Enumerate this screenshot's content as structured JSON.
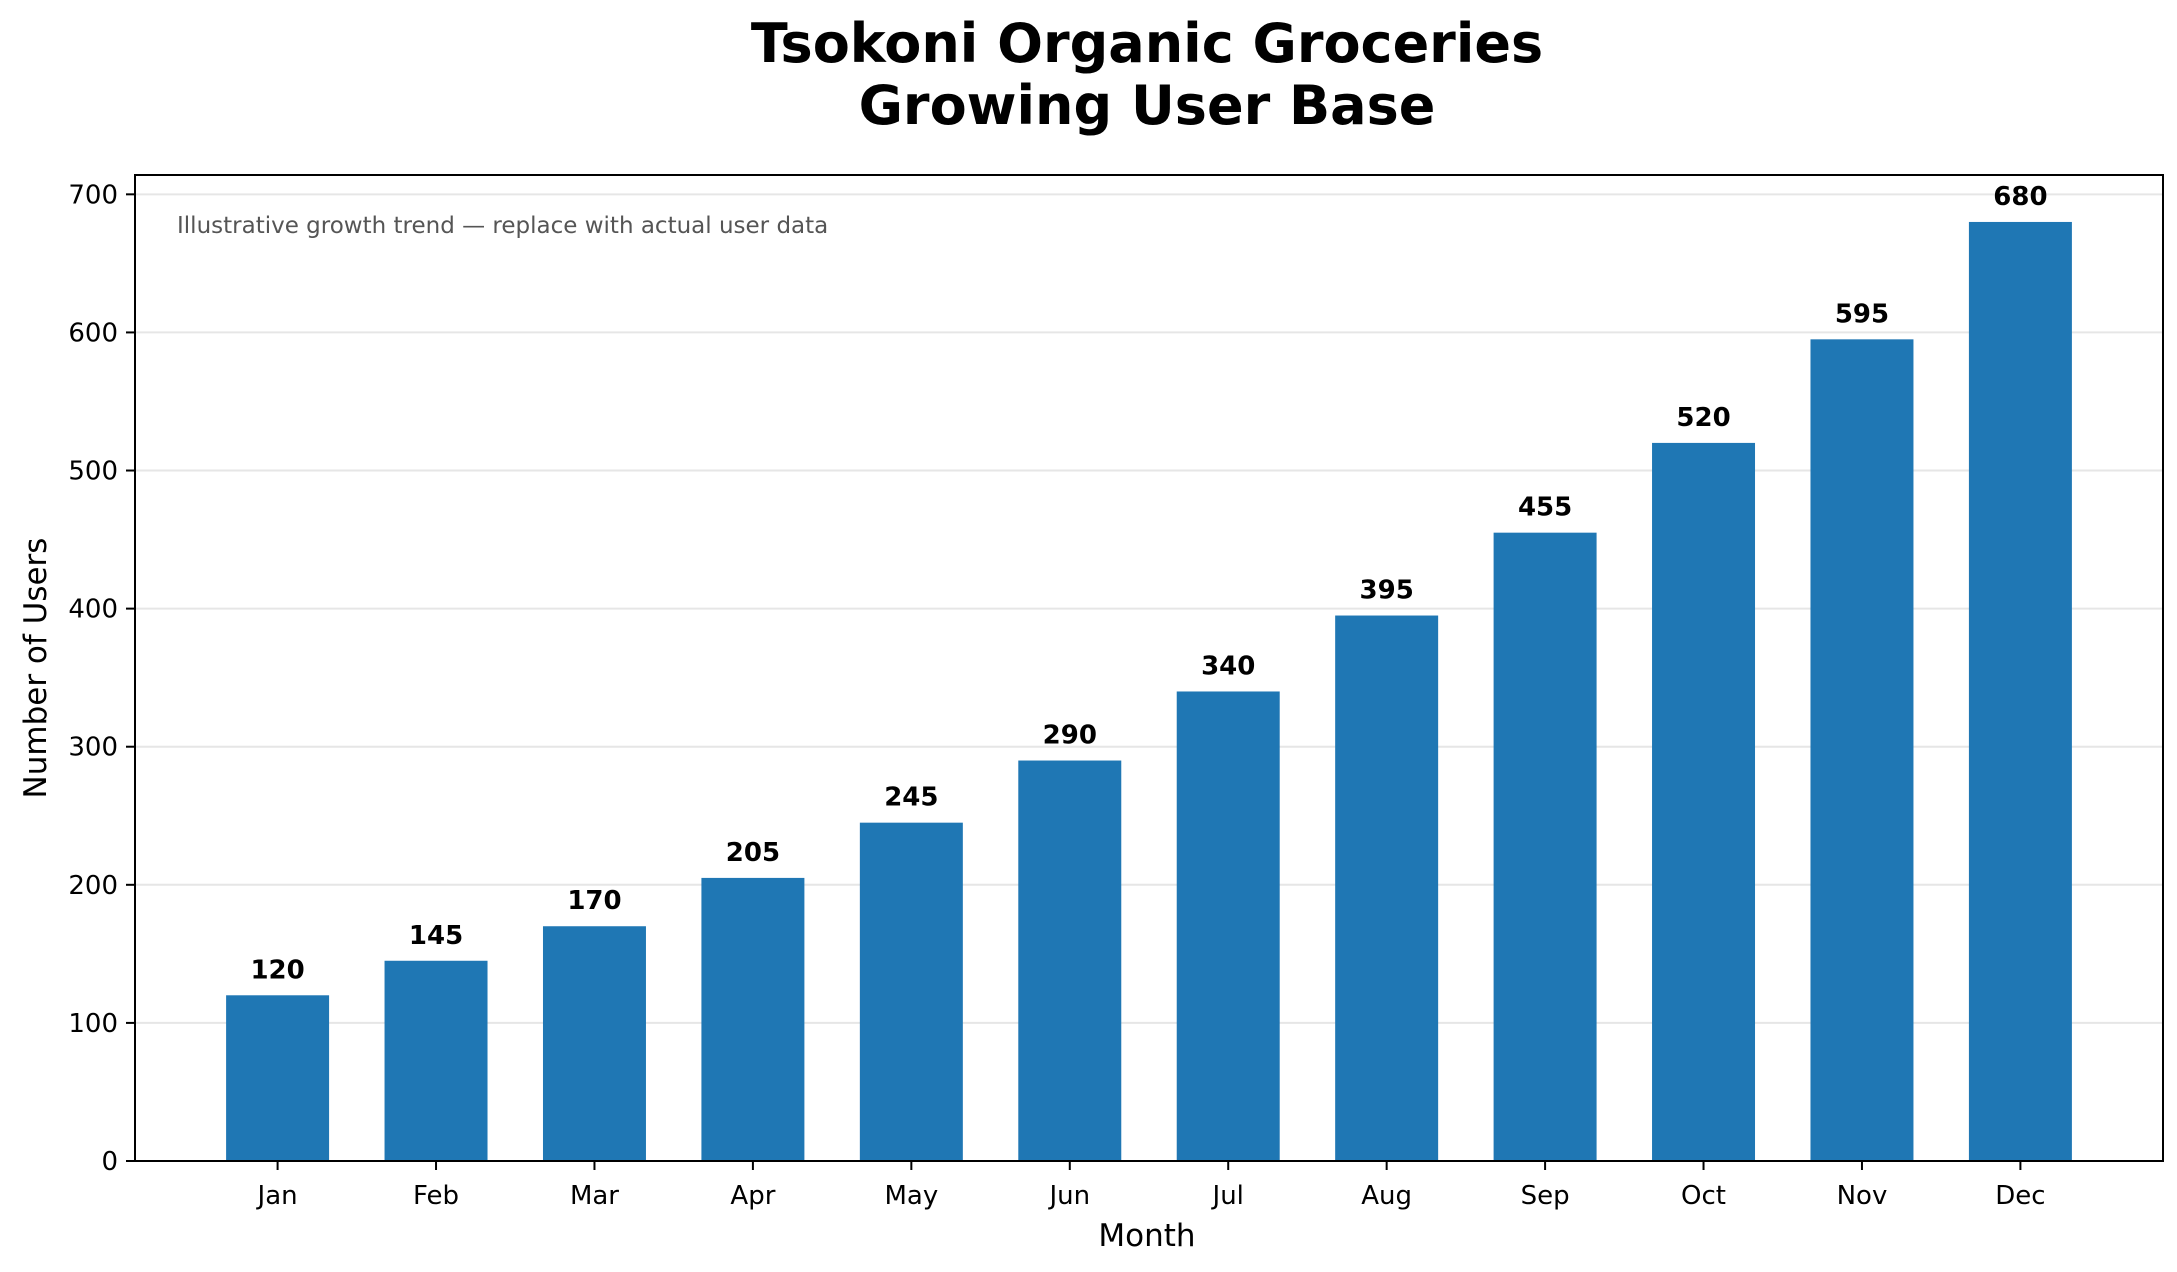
{
  "chart_data": {
    "type": "bar",
    "title": "Tsokoni Organic Groceries",
    "subtitle": "Growing User Base",
    "xlabel": "Month",
    "ylabel": "Number of Users",
    "categories": [
      "Jan",
      "Feb",
      "Mar",
      "Apr",
      "May",
      "Jun",
      "Jul",
      "Aug",
      "Sep",
      "Oct",
      "Nov",
      "Dec"
    ],
    "values": [
      120,
      145,
      170,
      205,
      245,
      290,
      340,
      395,
      455,
      520,
      595,
      680
    ],
    "ylim": [
      0,
      714
    ],
    "yticks": [
      0,
      100,
      200,
      300,
      400,
      500,
      600,
      700
    ],
    "annotation": "Illustrative growth trend — replace with actual user data",
    "grid": "horizontal",
    "legend": "none",
    "colors": {
      "bar": "#1f77b4",
      "grid": "#e6e6e6",
      "annotation": "#555555",
      "axis": "#000000"
    }
  }
}
